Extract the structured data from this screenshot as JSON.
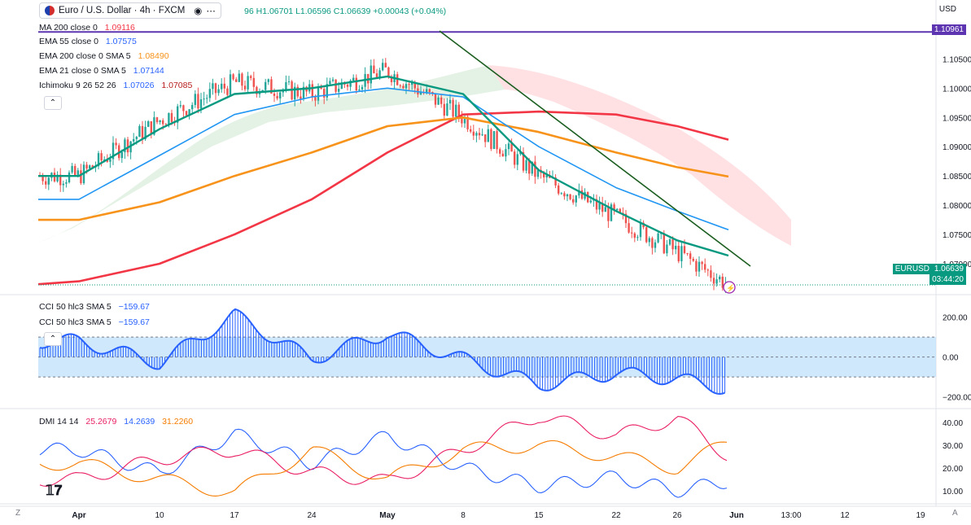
{
  "symbol": {
    "title": "Euro / U.S. Dollar · 4h · FXCM",
    "ohlc_open_tail": "96",
    "ohlc_high": "H1.06701",
    "ohlc_low": "L1.06596",
    "ohlc_close": "C1.06639",
    "ohlc_change": "+0.00043 (+0.04%)"
  },
  "currency": "USD",
  "indicators": [
    {
      "label": "MA 200 close 0",
      "value": "1.09116",
      "color": "#f23645"
    },
    {
      "label": "EMA 55 close 0",
      "value": "1.07575",
      "color": "#2962ff"
    },
    {
      "label": "EMA 200 close 0 SMA 5",
      "value": "1.08490",
      "color": "#f7931a"
    },
    {
      "label": "EMA 21 close 0 SMA 5",
      "value": "1.07144",
      "color": "#089981"
    },
    {
      "label": "Ichimoku 9 26 52 26",
      "value": "1.07026",
      "value2": "1.07085",
      "color": "#2962ff",
      "color2": "#b71c1c"
    }
  ],
  "cci_legend": [
    {
      "label": "CCI 50 hlc3 SMA 5",
      "value": "−159.67"
    },
    {
      "label": "CCI 50 hlc3 SMA 5",
      "value": "−159.67"
    }
  ],
  "dmi_legend": {
    "label": "DMI 14 14",
    "v1": "25.2679",
    "v2": "14.2639",
    "v3": "31.2260"
  },
  "price_tags": {
    "ma200": "1.10961",
    "symbol_tag": "EURUSD",
    "last": "1.06639",
    "countdown": "03:44:20"
  },
  "price_axis": [
    "1.10500",
    "1.10000",
    "1.09500",
    "1.09000",
    "1.08500",
    "1.08000",
    "1.07500",
    "1.07000"
  ],
  "cci_axis": [
    "200.00",
    "0.00",
    "−200.00"
  ],
  "dmi_axis": [
    "40.00",
    "30.00",
    "20.00",
    "10.00"
  ],
  "time_axis": [
    "Apr",
    "10",
    "17",
    "24",
    "May",
    "8",
    "15",
    "22",
    "26",
    "Jun",
    "13:00",
    "12",
    "19"
  ],
  "footer": {
    "left": "Z",
    "right": "A"
  },
  "colors": {
    "ma200": "#f23645",
    "ema200": "#f7931a",
    "ema55": "#2196f3",
    "ema21": "#089981",
    "tenkan": "#2962ff",
    "kijun": "#b71c1c",
    "trendline": "#1b5e20",
    "hline": "#5e35b1",
    "up": "#26a69a",
    "down": "#ef5350",
    "cci": "#2962ff",
    "plus_di": "#2962ff",
    "minus_di": "#e91e63",
    "adx": "#f57c00"
  },
  "chart_data": [
    {
      "type": "line",
      "title": "Euro / U.S. Dollar · 4h · FXCM",
      "x": [
        "Apr",
        "10",
        "17",
        "24",
        "May",
        "8",
        "15",
        "22",
        "26",
        "Jun"
      ],
      "ylim": [
        1.065,
        1.112
      ],
      "series": [
        {
          "name": "MA 200 close 0",
          "values": [
            1.067,
            1.07,
            1.075,
            1.081,
            1.089,
            1.0955,
            1.096,
            1.0955,
            1.0935,
            1.0912
          ]
        },
        {
          "name": "EMA 200 close 0 SMA 5",
          "values": [
            1.0775,
            1.0805,
            1.085,
            1.089,
            1.0935,
            1.095,
            1.0925,
            1.089,
            1.0865,
            1.0849
          ]
        },
        {
          "name": "EMA 55 close 0",
          "values": [
            1.081,
            1.0885,
            1.0955,
            1.0985,
            1.1,
            1.0985,
            1.09,
            1.083,
            1.079,
            1.0758
          ]
        },
        {
          "name": "EMA 21 close 0 SMA 5",
          "values": [
            1.085,
            1.093,
            1.099,
            1.1,
            1.102,
            1.099,
            1.086,
            1.079,
            1.074,
            1.0714
          ]
        },
        {
          "name": "Close",
          "values": [
            1.085,
            1.0945,
            1.101,
            1.099,
            1.103,
            1.095,
            1.085,
            1.078,
            1.072,
            1.0664
          ]
        }
      ],
      "hline": 1.10961,
      "last": 1.06639
    },
    {
      "type": "bar",
      "title": "CCI 50 hlc3 SMA 5",
      "x": [
        "Apr",
        "10",
        "17",
        "24",
        "May",
        "8",
        "15",
        "22",
        "26",
        "Jun"
      ],
      "ylim": [
        -250,
        300
      ],
      "bands": [
        100,
        -100
      ],
      "values": [
        80,
        -30,
        210,
        -10,
        120,
        -10,
        -140,
        -80,
        -110,
        -159.67
      ]
    },
    {
      "type": "line",
      "title": "DMI 14 14",
      "x": [
        "Apr",
        "10",
        "17",
        "24",
        "May",
        "8",
        "15",
        "22",
        "26",
        "Jun"
      ],
      "ylim": [
        5,
        45
      ],
      "series": [
        {
          "name": "DMI +",
          "values": [
            28,
            18,
            35,
            22,
            34,
            20,
            12,
            16,
            10,
            14.2639
          ]
        },
        {
          "name": "DMI −",
          "values": [
            15,
            24,
            28,
            18,
            14,
            28,
            43,
            34,
            42,
            25.2679
          ]
        },
        {
          "name": "ADX",
          "values": [
            22,
            15,
            9,
            28,
            15,
            28,
            30,
            25,
            20,
            31.226
          ]
        }
      ]
    }
  ]
}
